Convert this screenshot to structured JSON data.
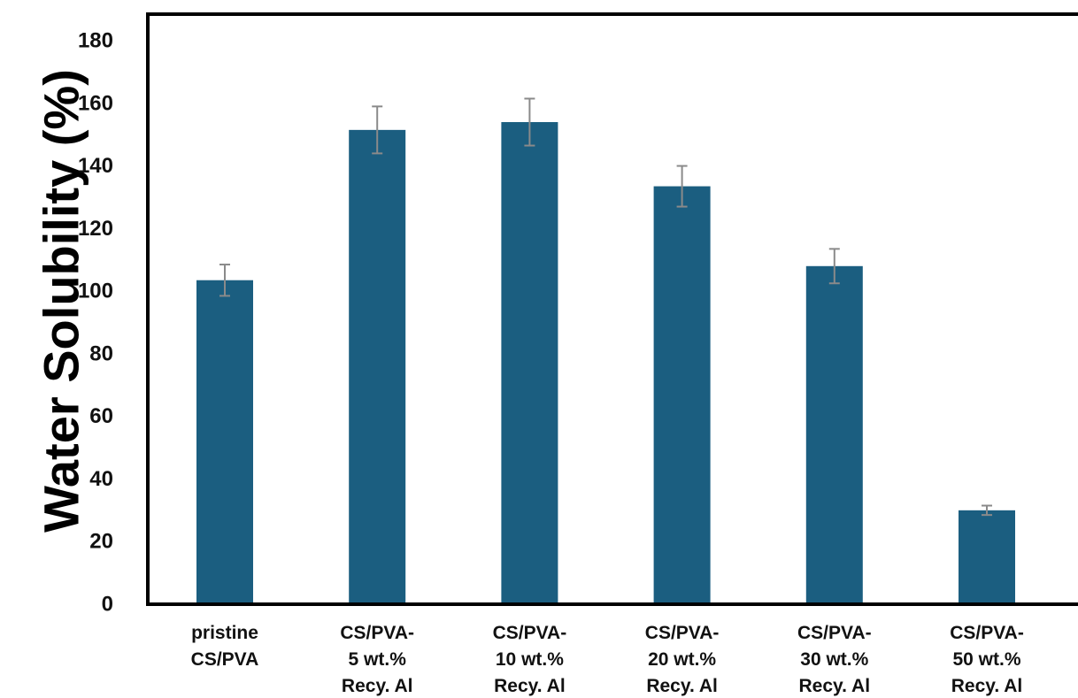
{
  "chart_data": {
    "type": "bar",
    "title": "",
    "xlabel": "",
    "ylabel": "Water Solubility (%)",
    "ylim": [
      0,
      180
    ],
    "yticks": [
      0,
      20,
      40,
      60,
      80,
      100,
      120,
      140,
      160,
      180
    ],
    "grid": false,
    "legend": "none",
    "bar_color": "#1b5e80",
    "error_bar_color": "#8a8a8a",
    "categories": [
      [
        "pristine",
        "CS/PVA"
      ],
      [
        "CS/PVA-",
        "5 wt.%",
        "Recy. Al"
      ],
      [
        "CS/PVA-",
        "10 wt.%",
        "Recy. Al"
      ],
      [
        "CS/PVA-",
        "20 wt.%",
        "Recy. Al"
      ],
      [
        "CS/PVA-",
        "30 wt.%",
        "Recy. Al"
      ],
      [
        "CS/PVA-",
        "50 wt.%",
        "Recy. Al"
      ]
    ],
    "values": [
      103.5,
      151.5,
      154,
      133.5,
      108,
      30
    ],
    "errors": [
      5,
      7.5,
      7.5,
      6.5,
      5.5,
      1.5
    ]
  }
}
